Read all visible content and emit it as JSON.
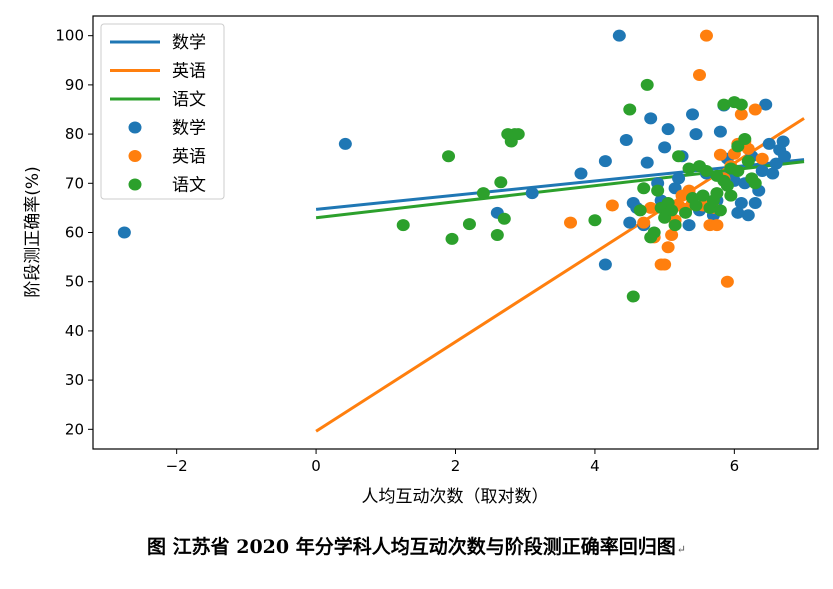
{
  "chart_data": {
    "type": "scatter",
    "xlabel": "人均互动次数（取对数）",
    "ylabel": "阶段测正确率(%)",
    "xlim": [
      -3.2,
      7.2
    ],
    "ylim": [
      16,
      104
    ],
    "xticks": [
      -2,
      0,
      2,
      4,
      6
    ],
    "yticks": [
      20,
      30,
      40,
      50,
      60,
      70,
      80,
      90,
      100
    ],
    "grid": false,
    "legend_position": "top-left",
    "colors": {
      "数学": "#1f77b4",
      "英语": "#ff7f0e",
      "语文": "#2ca02c"
    },
    "fit_lines": [
      {
        "name": "数学",
        "x": [
          0,
          7
        ],
        "y": [
          64.7,
          74.8
        ]
      },
      {
        "name": "英语",
        "x": [
          0,
          7
        ],
        "y": [
          19.6,
          83.2
        ]
      },
      {
        "name": "语文",
        "x": [
          0,
          7
        ],
        "y": [
          63.0,
          74.4
        ]
      }
    ],
    "series": [
      {
        "name": "数学",
        "points": [
          [
            -2.75,
            60
          ],
          [
            0.42,
            78
          ],
          [
            2.6,
            64
          ],
          [
            3.1,
            68
          ],
          [
            3.8,
            72
          ],
          [
            4.15,
            53.5
          ],
          [
            4.15,
            74.5
          ],
          [
            4.35,
            100
          ],
          [
            4.45,
            78.8
          ],
          [
            4.5,
            62
          ],
          [
            4.55,
            66
          ],
          [
            4.6,
            65
          ],
          [
            4.7,
            61.5
          ],
          [
            4.75,
            74.2
          ],
          [
            4.8,
            83.2
          ],
          [
            4.9,
            70
          ],
          [
            4.95,
            66.5
          ],
          [
            5.0,
            77.3
          ],
          [
            5.05,
            81
          ],
          [
            5.1,
            65
          ],
          [
            5.15,
            69
          ],
          [
            5.2,
            71
          ],
          [
            5.25,
            75.5
          ],
          [
            5.3,
            64.5
          ],
          [
            5.35,
            61.5
          ],
          [
            5.4,
            84
          ],
          [
            5.45,
            80
          ],
          [
            5.5,
            64.5
          ],
          [
            5.55,
            67.5
          ],
          [
            5.6,
            72
          ],
          [
            5.7,
            63.5
          ],
          [
            5.75,
            66.5
          ],
          [
            5.8,
            80.5
          ],
          [
            5.85,
            85.8
          ],
          [
            5.9,
            75
          ],
          [
            5.95,
            72
          ],
          [
            6.0,
            70.5
          ],
          [
            6.05,
            64
          ],
          [
            6.1,
            66
          ],
          [
            6.15,
            70
          ],
          [
            6.2,
            63.5
          ],
          [
            6.25,
            75.5
          ],
          [
            6.3,
            66
          ],
          [
            6.35,
            68.5
          ],
          [
            6.4,
            72.5
          ],
          [
            6.45,
            86
          ],
          [
            6.5,
            78
          ],
          [
            6.55,
            72
          ],
          [
            6.6,
            74
          ],
          [
            6.65,
            76.8
          ],
          [
            6.7,
            78.5
          ],
          [
            6.72,
            75.5
          ]
        ]
      },
      {
        "name": "英语",
        "points": [
          [
            3.65,
            62
          ],
          [
            4.25,
            65.5
          ],
          [
            4.7,
            62
          ],
          [
            4.8,
            65
          ],
          [
            4.85,
            59
          ],
          [
            4.95,
            53.5
          ],
          [
            5.0,
            53.5
          ],
          [
            5.05,
            57
          ],
          [
            5.1,
            59.5
          ],
          [
            5.15,
            62.5
          ],
          [
            5.2,
            65.5
          ],
          [
            5.25,
            67.5
          ],
          [
            5.3,
            64.8
          ],
          [
            5.35,
            68.5
          ],
          [
            5.4,
            66
          ],
          [
            5.5,
            92
          ],
          [
            5.55,
            65.5
          ],
          [
            5.6,
            100
          ],
          [
            5.65,
            61.5
          ],
          [
            5.7,
            65
          ],
          [
            5.75,
            61.5
          ],
          [
            5.8,
            75.8
          ],
          [
            5.85,
            71
          ],
          [
            5.9,
            50
          ],
          [
            5.95,
            73.5
          ],
          [
            6.0,
            76
          ],
          [
            6.05,
            78
          ],
          [
            6.1,
            84
          ],
          [
            6.15,
            78.5
          ],
          [
            6.2,
            77
          ],
          [
            6.3,
            85
          ],
          [
            6.4,
            75
          ]
        ]
      },
      {
        "name": "语文",
        "points": [
          [
            1.25,
            61.5
          ],
          [
            1.9,
            75.5
          ],
          [
            1.95,
            58.7
          ],
          [
            2.2,
            61.7
          ],
          [
            2.4,
            68
          ],
          [
            2.6,
            59.5
          ],
          [
            2.65,
            70.2
          ],
          [
            2.7,
            62.8
          ],
          [
            2.75,
            80
          ],
          [
            2.8,
            78.5
          ],
          [
            2.85,
            80
          ],
          [
            2.9,
            80
          ],
          [
            4.0,
            62.5
          ],
          [
            4.5,
            85
          ],
          [
            4.55,
            47
          ],
          [
            4.65,
            64.5
          ],
          [
            4.7,
            69
          ],
          [
            4.75,
            90
          ],
          [
            4.8,
            59
          ],
          [
            4.85,
            60
          ],
          [
            4.9,
            68.5
          ],
          [
            4.95,
            65
          ],
          [
            5.0,
            63
          ],
          [
            5.05,
            66
          ],
          [
            5.1,
            64.5
          ],
          [
            5.15,
            61.5
          ],
          [
            5.2,
            75.5
          ],
          [
            5.3,
            64
          ],
          [
            5.35,
            73
          ],
          [
            5.4,
            67
          ],
          [
            5.45,
            65.5
          ],
          [
            5.5,
            73.5
          ],
          [
            5.55,
            67.5
          ],
          [
            5.6,
            72.5
          ],
          [
            5.65,
            65
          ],
          [
            5.7,
            66.5
          ],
          [
            5.75,
            68
          ],
          [
            5.8,
            64.5
          ],
          [
            5.85,
            86
          ],
          [
            5.9,
            69.5
          ],
          [
            5.95,
            73
          ],
          [
            6.0,
            86.5
          ],
          [
            6.05,
            77.5
          ],
          [
            6.1,
            86
          ],
          [
            6.15,
            79
          ],
          [
            6.2,
            74.5
          ],
          [
            6.25,
            71
          ],
          [
            6.3,
            70
          ],
          [
            5.95,
            67.5
          ],
          [
            6.05,
            72.5
          ],
          [
            5.85,
            70.5
          ],
          [
            5.75,
            71.5
          ]
        ]
      }
    ]
  },
  "legend": {
    "lines": [
      "数学",
      "英语",
      "语文"
    ],
    "markers": [
      "数学",
      "英语",
      "语文"
    ]
  },
  "caption": {
    "text": "图  江苏省 2020 年分学科人均互动次数与阶段测正确率回归图",
    "mark": "↵"
  }
}
